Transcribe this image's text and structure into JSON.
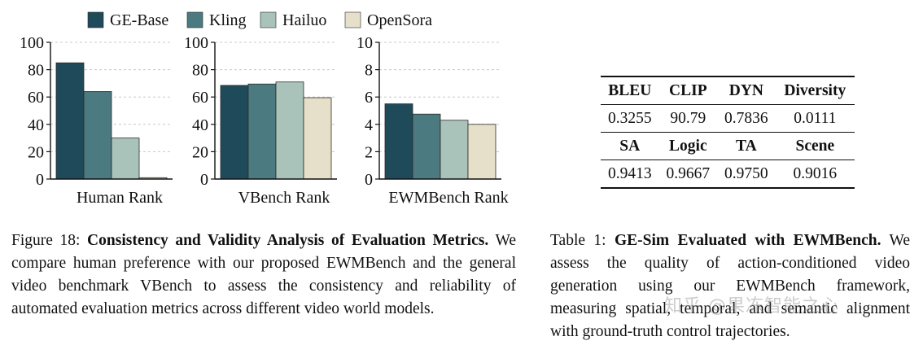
{
  "figure": {
    "legend": [
      {
        "name": "GE-Base",
        "color": "#1f4a5a"
      },
      {
        "name": "Kling",
        "color": "#4b7a80"
      },
      {
        "name": "Hailuo",
        "color": "#a9c2ba"
      },
      {
        "name": "OpenSora",
        "color": "#e6dfc9"
      }
    ]
  },
  "chart_data": [
    {
      "type": "bar",
      "title": "",
      "xlabel": "Human Rank",
      "ylabel": "",
      "ylim": [
        0,
        100
      ],
      "yticks": [
        "0",
        "20",
        "40",
        "60",
        "80",
        "100"
      ],
      "categories": [
        "GE-Base",
        "Kling",
        "Hailuo",
        "OpenSora"
      ],
      "values": [
        85,
        64,
        30,
        1
      ]
    },
    {
      "type": "bar",
      "title": "",
      "xlabel": "VBench Rank",
      "ylabel": "",
      "ylim": [
        0,
        100
      ],
      "yticks": [
        "0",
        "20",
        "40",
        "60",
        "80",
        "100"
      ],
      "categories": [
        "GE-Base",
        "Kling",
        "Hailuo",
        "OpenSora"
      ],
      "values": [
        68.5,
        69.5,
        71,
        59.5
      ]
    },
    {
      "type": "bar",
      "title": "",
      "xlabel": "EWMBench Rank",
      "ylabel": "",
      "ylim": [
        0,
        10
      ],
      "yticks": [
        "0",
        "2",
        "4",
        "6",
        "8",
        "10"
      ],
      "categories": [
        "GE-Base",
        "Kling",
        "Hailuo",
        "OpenSora"
      ],
      "values": [
        5.5,
        4.75,
        4.3,
        4.0
      ]
    }
  ],
  "table": {
    "header1": [
      "BLEU",
      "CLIP",
      "DYN",
      "Diversity"
    ],
    "row1": [
      "0.3255",
      "90.79",
      "0.7836",
      "0.0111"
    ],
    "header2": [
      "SA",
      "Logic",
      "TA",
      "Scene"
    ],
    "row2": [
      "0.9413",
      "0.9667",
      "0.9750",
      "0.9016"
    ]
  },
  "figure_caption": {
    "label": "Figure 18: ",
    "bold": "Consistency and Validity Analysis of Evaluation Metrics.",
    "text": " We compare human preference with our proposed EWMBench and the general video benchmark VBench to assess the consistency and reliability of automated evaluation metrics across different video world models."
  },
  "table_caption": {
    "label": "Table 1: ",
    "bold": "GE-Sim Evaluated with EWMBench.",
    "text": " We assess the quality of action-conditioned video generation using our EWMBench framework, measuring spatial, temporal, and semantic alignment with ground-truth control trajectories."
  },
  "watermark": "知乎 @果冻智能之心"
}
